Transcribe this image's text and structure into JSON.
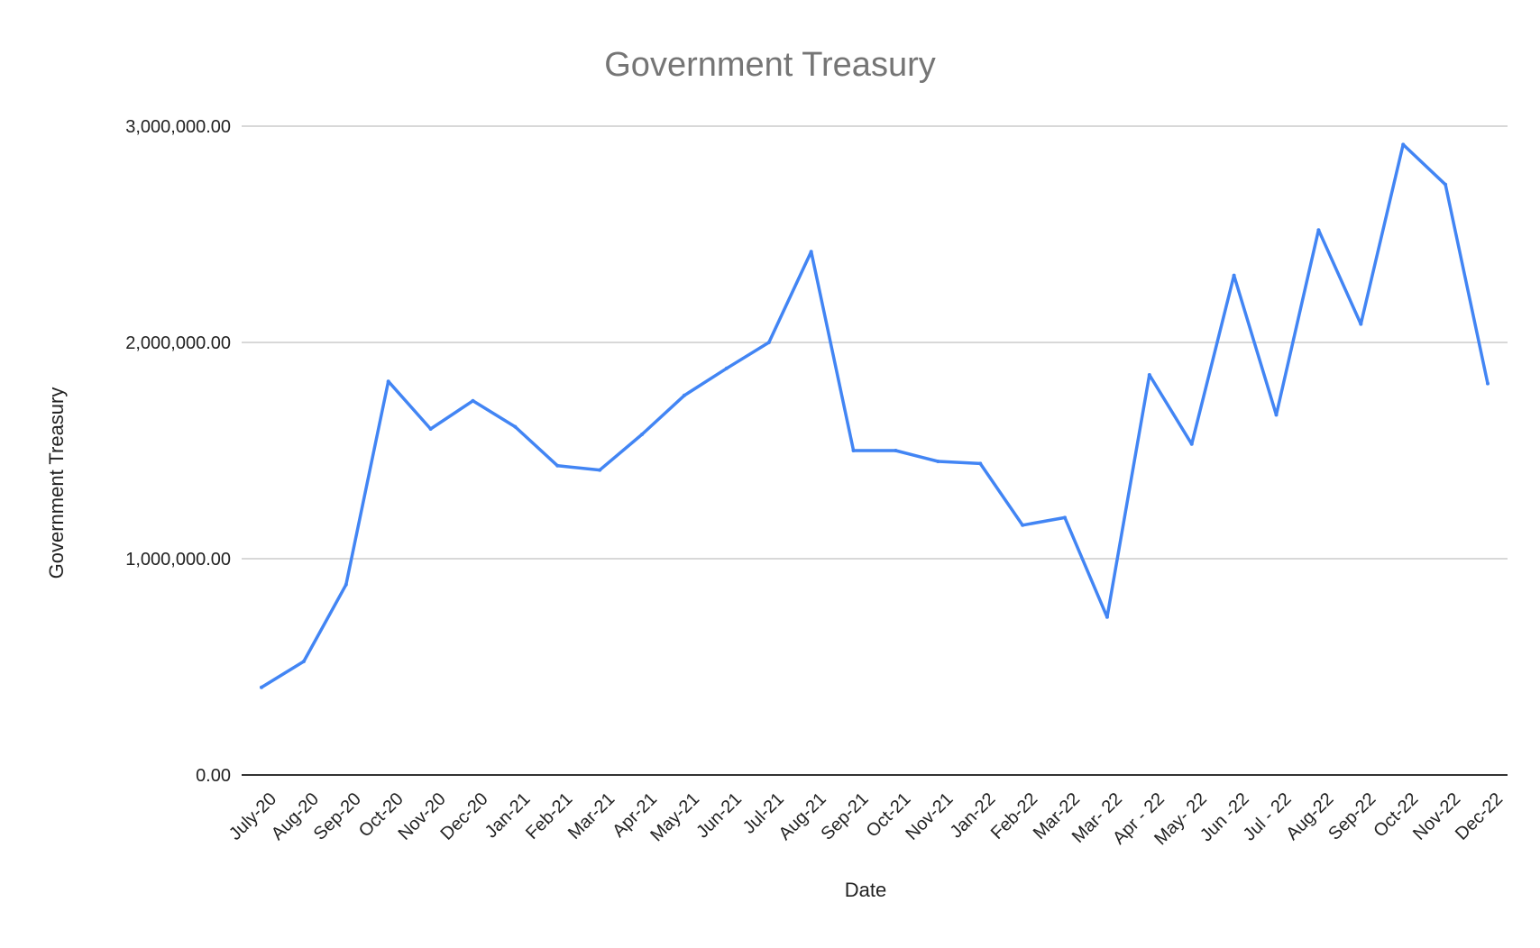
{
  "chart_data": {
    "type": "line",
    "title": "Government Treasury",
    "xlabel": "Date",
    "ylabel": "Government Treasury",
    "categories": [
      "July-20",
      "Aug-20",
      "Sep-20",
      "Oct-20",
      "Nov-20",
      "Dec-20",
      "Jan-21",
      "Feb-21",
      "Mar-21",
      "Apr-21",
      "May-21",
      "Jun-21",
      "Jul-21",
      "Aug-21",
      "Sep-21",
      "Oct-21",
      "Nov-21",
      "Jan-22",
      "Feb-22",
      "Mar-22",
      "Mar- 22",
      "Apr - 22",
      "May- 22",
      "Jun -22",
      "Jul - 22",
      "Aug-22",
      "Sep-22",
      "Oct-22",
      "Nov-22",
      "Dec-22"
    ],
    "series": [
      {
        "values": [
          405000,
          525000,
          880000,
          1820000,
          1600000,
          1730000,
          1610000,
          1430000,
          1410000,
          1575000,
          1755000,
          1880000,
          2000000,
          2420000,
          1500000,
          1500000,
          1450000,
          1440000,
          1155000,
          1190000,
          730000,
          1850000,
          1530000,
          2310000,
          1665000,
          2520000,
          2085000,
          2915000,
          2730000,
          1810000
        ]
      }
    ],
    "ylim": [
      0,
      3000000
    ],
    "yticks": [
      0,
      1000000,
      2000000,
      3000000
    ],
    "ytick_labels": [
      "0.00",
      "1,000,000.00",
      "2,000,000.00",
      "3,000,000.00"
    ],
    "grid": true,
    "legend": "none",
    "line_color": "#4285f4"
  }
}
